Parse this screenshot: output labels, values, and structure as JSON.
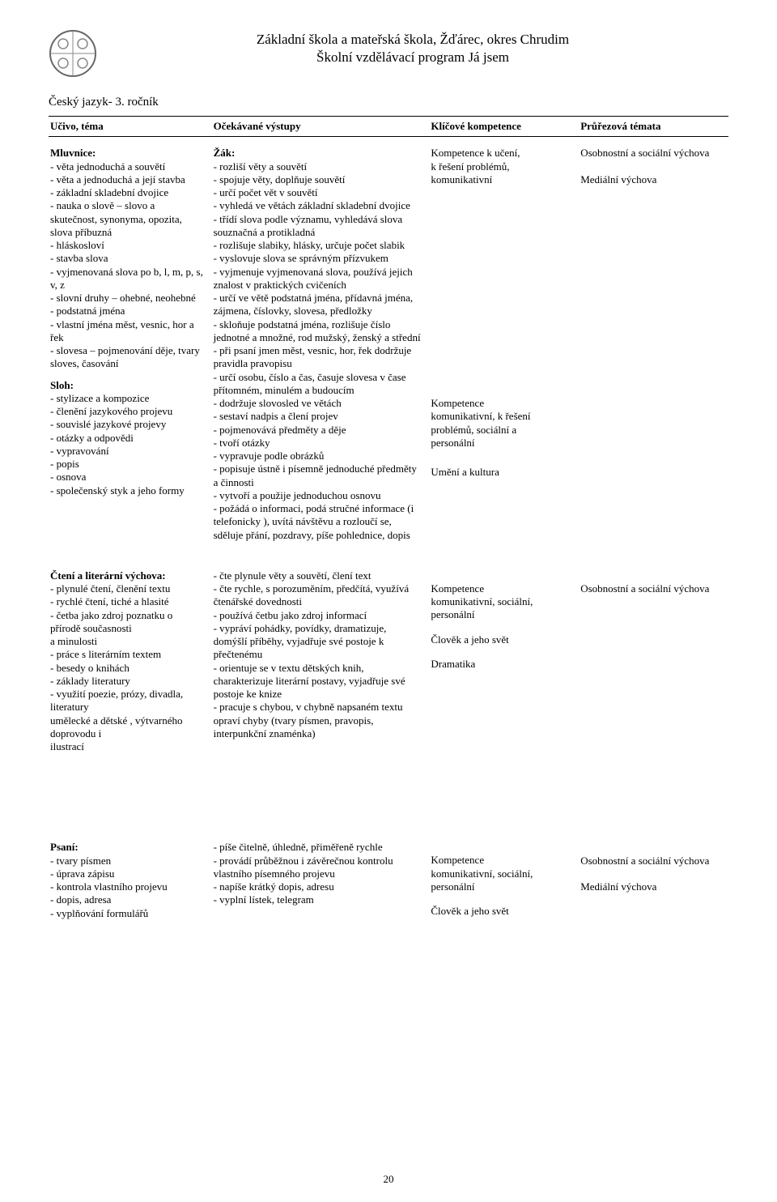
{
  "page_number": "20",
  "header": {
    "line1": "Základní škola a mateřská škola, Žďárec, okres Chrudim",
    "line2": "Školní vzdělávací program Já jsem"
  },
  "subject": "Český jazyk- 3. ročník",
  "columns": {
    "topic": "Učivo, téma",
    "outputs": "Očekávané výstupy",
    "competencies": "Klíčové kompetence",
    "cross": "Průřezová témata"
  },
  "rows": [
    {
      "topic": {
        "sections": [
          {
            "title": "Mluvnice:",
            "lines": [
              "- věta jednoduchá a souvětí",
              "- věta a jednoduchá a její stavba",
              "- základní skladební dvojice",
              "- nauka o slově – slovo a skutečnost, synonyma, opozita, slova příbuzná",
              "- hláskosloví",
              "- stavba slova",
              "- vyjmenovaná slova po b, l, m, p, s, v, z",
              "- slovní druhy – ohebné, neohebné",
              "- podstatná jména",
              "- vlastní jména měst, vesnic, hor a řek",
              "- slovesa – pojmenování děje, tvary sloves, časování"
            ]
          },
          {
            "title": "Sloh:",
            "lines": [
              "- stylizace a kompozice",
              "- členění jazykového projevu",
              "- souvislé jazykové projevy",
              "- otázky a odpovědi",
              "- vypravování",
              "- popis",
              "- osnova",
              "- společenský styk a jeho formy"
            ]
          }
        ]
      },
      "outputs": {
        "sections": [
          {
            "title": "Žák:",
            "lines": [
              "- rozliší věty a souvětí",
              "- spojuje věty, doplňuje souvětí",
              "- určí počet vět v souvětí",
              "- vyhledá ve větách základní skladební dvojice",
              "- třídí slova podle významu, vyhledává slova souznačná a protikladná",
              "- rozlišuje slabiky, hlásky, určuje počet slabik",
              "- vyslovuje slova se správným přízvukem",
              "- vyjmenuje vyjmenovaná slova, používá jejich znalost v praktických cvičeních",
              "- určí ve větě podstatná jména, přídavná jména, zájmena, číslovky, slovesa, předložky",
              "- skloňuje podstatná jména, rozlišuje číslo jednotné a množné, rod mužský, ženský a střední",
              "- při psaní jmen měst, vesnic, hor, řek dodržuje pravidla pravopisu",
              "- určí osobu, číslo a čas, časuje slovesa v čase přítomném, minulém a budoucím",
              "- dodržuje slovosled ve větách",
              "- sestaví nadpis a člení projev",
              "- pojmenovává předměty a děje",
              "- tvoří otázky",
              "- vypravuje podle obrázků",
              "- popisuje ústně i písemně jednoduché předměty a činnosti",
              "- vytvoří a použije jednoduchou osnovu",
              "- požádá o informaci, podá stručné informace (i telefonicky ), uvítá návštěvu a rozloučí se, sděluje přání, pozdravy, píše pohlednice, dopis"
            ]
          }
        ]
      },
      "competencies": {
        "groups": [
          "Kompetence k učení,\nk řešení problémů,\nkomunikativní",
          "Kompetence\nkomunikativní, k řešení\nproblémů, sociální a\npersonální",
          "Umění a kultura"
        ],
        "spacers": [
          0,
          260,
          20
        ]
      },
      "cross": {
        "lines": [
          "Osobnostní a sociální výchova",
          "",
          "Mediální výchova"
        ]
      }
    },
    {
      "topic": {
        "sections": [
          {
            "title": "Čtení a literární výchova:",
            "lines": [
              "- plynulé čtení, členění textu",
              "- rychlé čtení, tiché a hlasité",
              "- četba jako zdroj poznatku o přírodě současnosti",
              "a minulosti",
              "- práce s literárním textem",
              "- besedy o knihách",
              "- základy literatury",
              "- využití poezie, prózy, divadla, literatury",
              "umělecké a dětské , výtvarného doprovodu i",
              "ilustrací"
            ]
          }
        ]
      },
      "outputs": {
        "sections": [
          {
            "title": "",
            "lines": [
              "- čte plynule věty a souvětí, člení text",
              "- čte rychle, s porozuměním, předčítá, využívá čtenářské dovednosti",
              "- používá četbu jako zdroj informací",
              "- vypráví pohádky, povídky, dramatizuje, domýšlí příběhy, vyjadřuje své postoje k přečtenému",
              "- orientuje se v textu dětských knih, charakterizuje literární postavy, vyjadřuje své postoje ke knize",
              "- pracuje s chybou, v chybně napsaném textu opraví chyby (tvary písmen, pravopis, interpunkční znaménka)"
            ]
          }
        ]
      },
      "competencies": {
        "groups": [
          "Kompetence\nkomunikativní, sociální,\npersonální",
          "Člověk a jeho svět",
          "Dramatika"
        ],
        "spacers": [
          16,
          14,
          14
        ]
      },
      "cross": {
        "lines": [
          "",
          "Osobnostní a sociální výchova"
        ]
      }
    },
    {
      "topic": {
        "sections": [
          {
            "title": "Psaní:",
            "lines": [
              "- tvary písmen",
              "- úprava zápisu",
              "- kontrola vlastního projevu",
              "- dopis, adresa",
              "- vyplňování formulářů"
            ]
          }
        ]
      },
      "outputs": {
        "sections": [
          {
            "title": "",
            "lines": [
              "- píše čitelně, úhledně, přiměřeně rychle",
              "- provádí průběžnou i závěrečnou kontrolu vlastního písemného projevu",
              "- napíše krátký dopis, adresu",
              "- vyplní lístek, telegram"
            ]
          }
        ]
      },
      "competencies": {
        "groups": [
          "Kompetence\nkomunikativní, sociální,\npersonální",
          "Člověk a jeho svět"
        ],
        "spacers": [
          16,
          14
        ]
      },
      "cross": {
        "lines": [
          "",
          "Osobnostní a sociální výchova",
          "",
          "Mediální výchova"
        ]
      }
    }
  ]
}
